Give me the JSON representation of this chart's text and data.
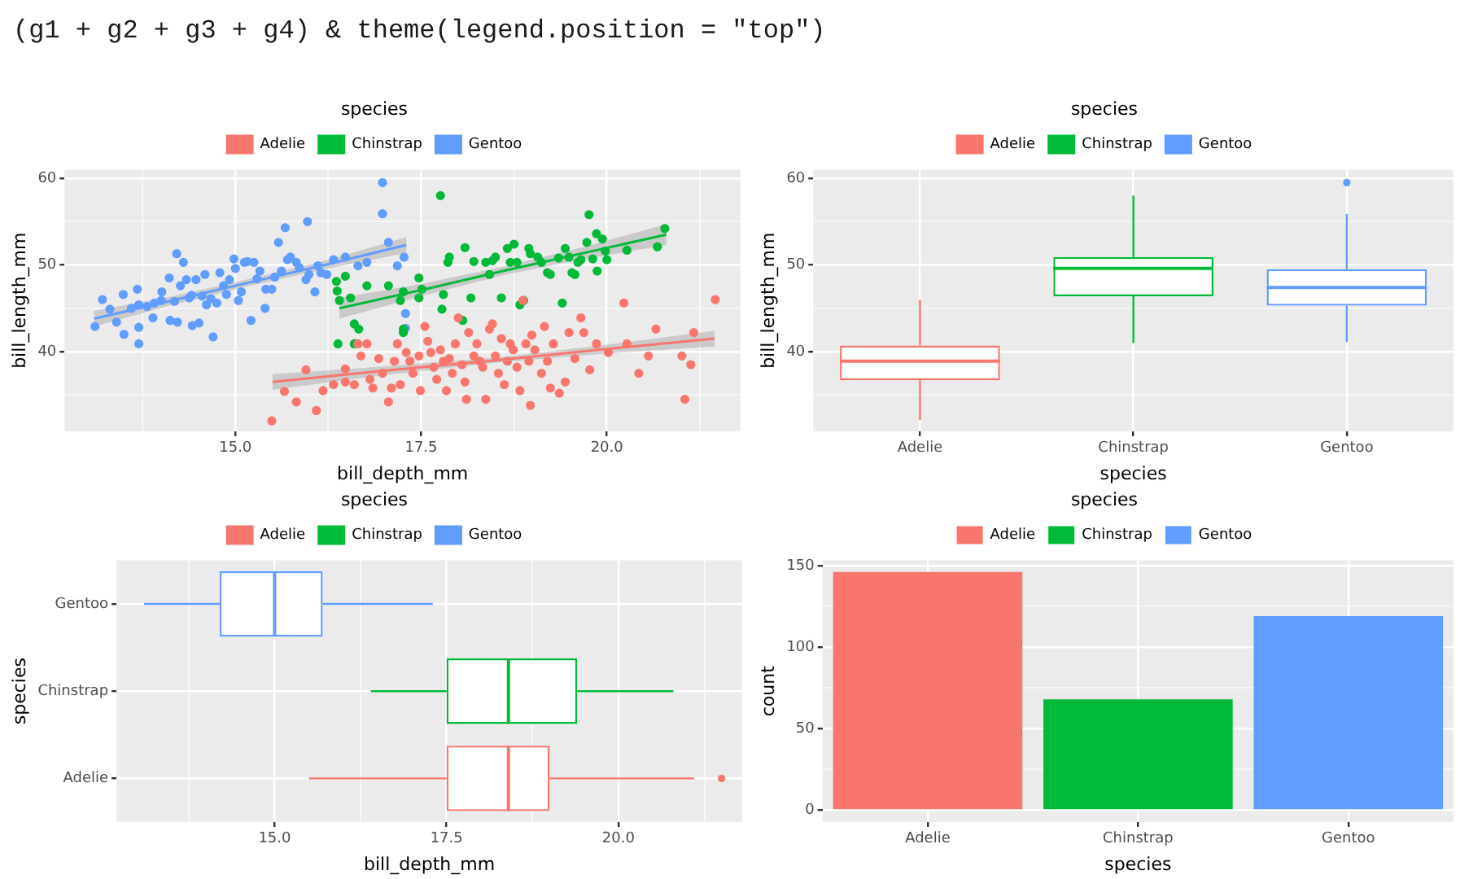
{
  "chart_data": [
    {
      "type": "scatter",
      "xlabel": "bill_depth_mm",
      "ylabel": "bill_length_mm",
      "legend_title": "species",
      "legend": "top",
      "grid": true,
      "marker": "circle",
      "annotations": [
        "(g1 + g2 + g3 + g4) & theme(legend.position = \"top\")"
      ],
      "xlim": [
        12.7,
        21.8
      ],
      "ylim": [
        30.8,
        61
      ],
      "xticks": [
        {
          "value": 13.75,
          "label": null
        },
        {
          "value": 15,
          "label": "15.0"
        },
        {
          "value": 16.25,
          "label": null
        },
        {
          "value": 17.5,
          "label": "17.5"
        },
        {
          "value": 18.75,
          "label": null
        },
        {
          "value": 20,
          "label": "20.0"
        },
        {
          "value": 21.25,
          "label": null
        }
      ],
      "yticks": [
        {
          "value": 35,
          "label": null
        },
        40,
        {
          "value": 45,
          "label": null
        },
        50,
        {
          "value": 55,
          "label": null
        },
        60
      ],
      "series": [
        {
          "name": "Adelie",
          "color": "#f8766d",
          "x": [
            15.49,
            15.66,
            15.82,
            15.95,
            16.09,
            16.18,
            16.32,
            16.48,
            16.48,
            16.6,
            16.65,
            16.69,
            16.77,
            16.81,
            16.85,
            16.93,
            16.98,
            17.06,
            17.1,
            17.14,
            17.18,
            17.22,
            17.3,
            17.35,
            17.39,
            17.47,
            17.49,
            17.55,
            17.59,
            17.63,
            17.67,
            17.71,
            17.76,
            17.8,
            17.84,
            17.88,
            17.92,
            17.96,
            18,
            18.05,
            18.09,
            18.11,
            18.14,
            18.21,
            18.25,
            18.29,
            18.33,
            18.37,
            18.42,
            18.46,
            18.5,
            18.54,
            18.58,
            18.62,
            18.66,
            18.7,
            18.74,
            18.79,
            18.83,
            18.87,
            18.91,
            18.95,
            18.97,
            18.99,
            19.03,
            19.12,
            19.16,
            19.2,
            19.24,
            19.28,
            19.36,
            19.44,
            19.49,
            19.57,
            19.65,
            19.69,
            19.77,
            19.86,
            20.02,
            20.23,
            20.27,
            20.43,
            20.56,
            20.66,
            21.01,
            21.05,
            21.13,
            21.17,
            21.46
          ],
          "values": [
            32,
            35.4,
            34.2,
            37.9,
            33.2,
            35.5,
            36.2,
            38,
            36.5,
            36.2,
            40.9,
            39.5,
            40.9,
            36.8,
            35.8,
            39.2,
            37.5,
            34.2,
            35.8,
            38.9,
            40.9,
            36.2,
            39.9,
            38.9,
            37.5,
            39.5,
            35.5,
            42.9,
            41.2,
            39.9,
            38.2,
            36.8,
            40.2,
            38.9,
            35.5,
            39.2,
            37.5,
            40.9,
            43.9,
            38.5,
            36.5,
            34.5,
            42.2,
            39.5,
            40.9,
            38.9,
            38.2,
            34.5,
            42.6,
            43.2,
            39.5,
            37.5,
            41.5,
            36.2,
            38.9,
            40.9,
            40.2,
            38.2,
            35.5,
            45.9,
            40.9,
            38.9,
            33.8,
            41.9,
            40.2,
            37.5,
            42.9,
            38.9,
            35.8,
            40.9,
            35.2,
            36.5,
            42.2,
            39.2,
            43.9,
            42.2,
            37.9,
            40.9,
            39.9,
            45.6,
            40.9,
            37.5,
            39.5,
            42.6,
            39.5,
            34.5,
            38.5,
            42.2,
            46
          ]
        },
        {
          "name": "Chinstrap",
          "color": "#00ba38",
          "x": [
            16.36,
            16.37,
            16.4,
            16.48,
            16.55,
            16.6,
            16.66,
            16.38,
            16.6,
            16.77,
            17.06,
            17.22,
            17.26,
            17.26,
            17.26,
            17.47,
            17.47,
            17.51,
            17.78,
            17.8,
            17.76,
            17.86,
            17.88,
            18.06,
            18.09,
            18.17,
            18.21,
            18.37,
            18.42,
            18.46,
            18.5,
            18.58,
            18.66,
            18.7,
            18.75,
            18.79,
            18.83,
            18.88,
            18.95,
            18.97,
            19.07,
            19.12,
            19.2,
            19.24,
            19.35,
            19.4,
            19.44,
            19.49,
            19.53,
            19.57,
            19.61,
            19.65,
            19.73,
            19.76,
            19.81,
            19.86,
            19.87,
            19.94,
            19.98,
            20,
            20.27,
            20.68,
            20.78
          ],
          "values": [
            48.1,
            47,
            45.9,
            48.7,
            46.2,
            43.2,
            42.6,
            40.9,
            40.9,
            47.6,
            47.6,
            45.9,
            46.9,
            42.6,
            42.2,
            48.5,
            46.2,
            47.2,
            44.9,
            46.6,
            58,
            50.3,
            50.9,
            43.6,
            52,
            46.2,
            50.4,
            50.3,
            48.9,
            50.5,
            50.9,
            46.2,
            51.9,
            50.3,
            52.4,
            50.3,
            45.4,
            45.9,
            51.9,
            51.3,
            50.9,
            50.3,
            49.1,
            48.9,
            50.8,
            45.6,
            51.9,
            50.9,
            49.1,
            48.9,
            50.3,
            50.6,
            52.6,
            55.8,
            50.7,
            53.6,
            49.3,
            53,
            51.6,
            50.6,
            51.7,
            52.1,
            54.2
          ]
        },
        {
          "name": "Gentoo",
          "color": "#619cff",
          "x": [
            13.11,
            13.21,
            13.31,
            13.4,
            13.49,
            13.5,
            13.6,
            13.68,
            13.7,
            13.7,
            13.7,
            13.81,
            13.89,
            13.91,
            14,
            14.01,
            14.11,
            14.12,
            14.18,
            14.21,
            14.22,
            14.26,
            14.3,
            14.34,
            14.38,
            14.41,
            14.42,
            14.47,
            14.51,
            14.55,
            14.59,
            14.61,
            14.67,
            14.7,
            14.75,
            14.79,
            14.84,
            14.88,
            14.92,
            14.98,
            15,
            15.04,
            15.08,
            15.12,
            15.16,
            15.21,
            15.25,
            15.29,
            15.33,
            15.4,
            15.41,
            15.49,
            15.53,
            15.58,
            15.62,
            15.67,
            15.7,
            15.74,
            15.82,
            15.86,
            15.95,
            15.97,
            15.99,
            16.07,
            16.11,
            16.15,
            16.23,
            16.32,
            16.48,
            16.65,
            16.77,
            16.98,
            16.98,
            17.06,
            17.18,
            17.27,
            17.29,
            17.29
          ],
          "values": [
            42.9,
            46,
            44.9,
            43.4,
            46.6,
            42,
            45,
            47.2,
            42.8,
            40.9,
            45.4,
            45.2,
            43.9,
            45.6,
            45.9,
            46.9,
            48.5,
            43.6,
            45.8,
            51.3,
            43.4,
            47.6,
            50.3,
            48.3,
            46.2,
            46.5,
            43,
            48.3,
            43.3,
            46.4,
            48.9,
            45.4,
            46.1,
            41.7,
            45.6,
            49.1,
            47.6,
            46.6,
            48.3,
            50.7,
            49.6,
            45.9,
            46.9,
            50.3,
            50.4,
            43.6,
            50.3,
            48.4,
            49.3,
            45,
            47.2,
            47.2,
            48.6,
            52.6,
            49.3,
            54.3,
            50.6,
            50.9,
            50.3,
            49.7,
            48.3,
            55,
            48.9,
            46.9,
            49.9,
            49.1,
            48.9,
            50.6,
            50.9,
            49.9,
            50.3,
            59.5,
            55.9,
            52.6,
            49.9,
            50.9,
            44.4,
            42.7
          ]
        },
        {
          "type": "line",
          "marker": "none",
          "color": "#f8766d",
          "x": [
            15.5,
            17,
            18.5,
            20,
            21.45
          ],
          "values": [
            36.5,
            37.8,
            39,
            40.3,
            41.5
          ],
          "lower": [
            35.6,
            37.3,
            38.7,
            39.8,
            40.6
          ],
          "upper": [
            37.4,
            38.3,
            39.3,
            40.8,
            42.4
          ]
        },
        {
          "type": "line",
          "marker": "none",
          "color": "#00ba38",
          "x": [
            16.4,
            17.5,
            18.6,
            19.7,
            20.8
          ],
          "values": [
            45,
            47.1,
            49.3,
            51.4,
            53.5
          ],
          "lower": [
            43.8,
            46.4,
            48.8,
            50.7,
            52.3
          ],
          "upper": [
            46.2,
            47.8,
            49.8,
            52.1,
            54.7
          ]
        },
        {
          "type": "line",
          "marker": "none",
          "color": "#619cff",
          "x": [
            13.1,
            14.15,
            15.2,
            16.25,
            17.3
          ],
          "values": [
            43.8,
            45.9,
            48,
            50.1,
            52.3
          ],
          "lower": [
            42.9,
            45.4,
            47.6,
            49.6,
            51.4
          ],
          "upper": [
            44.7,
            46.4,
            48.4,
            50.6,
            53.2
          ]
        }
      ]
    },
    {
      "type": "box",
      "categories": [
        "Adelie",
        "Chinstrap",
        "Gentoo"
      ],
      "xlabel": "species",
      "ylabel": "bill_length_mm",
      "legend_title": "species",
      "legend": "top",
      "grid": true,
      "ylim": [
        30.8,
        61
      ],
      "yticks": [
        {
          "value": 35,
          "label": null
        },
        40,
        {
          "value": 45,
          "label": null
        },
        50,
        {
          "value": 55,
          "label": null
        },
        60
      ],
      "series": [
        {
          "name": "Adelie",
          "color": "#f8766d",
          "boxes": [
            {
              "low": 32.1,
              "q1": 36.7,
              "median": 38.9,
              "q3": 40.7,
              "high": 46
            },
            null,
            null
          ]
        },
        {
          "name": "Chinstrap",
          "color": "#00ba38",
          "boxes": [
            null,
            {
              "low": 41,
              "q1": 46.4,
              "median": 49.6,
              "q3": 50.9,
              "high": 58
            },
            null
          ]
        },
        {
          "name": "Gentoo",
          "color": "#619cff",
          "boxes": [
            null,
            null,
            {
              "low": 41.1,
              "q1": 45.3,
              "median": 47.4,
              "q3": 49.5,
              "high": 55.9,
              "outliers": [
                59.5
              ]
            }
          ]
        }
      ]
    },
    {
      "type": "box",
      "orientation": "horizontal",
      "categories": [
        "Gentoo",
        "Chinstrap",
        "Adelie"
      ],
      "xlabel": "bill_depth_mm",
      "ylabel": "species",
      "legend_title": "species",
      "legend": "top",
      "grid": true,
      "xlim": [
        12.7,
        21.8
      ],
      "xticks": [
        {
          "value": 13.75,
          "label": null
        },
        {
          "value": 15,
          "label": "15.0"
        },
        {
          "value": 16.25,
          "label": null
        },
        {
          "value": 17.5,
          "label": "17.5"
        },
        {
          "value": 18.75,
          "label": null
        },
        {
          "value": 20,
          "label": "20.0"
        },
        {
          "value": 21.25,
          "label": null
        }
      ],
      "series": [
        {
          "name": "Adelie",
          "color": "#f8766d",
          "boxes": [
            null,
            null,
            {
              "low": 15.5,
              "q1": 17.5,
              "median": 18.4,
              "q3": 19,
              "high": 21.1,
              "outliers": [
                21.5
              ]
            }
          ]
        },
        {
          "name": "Chinstrap",
          "color": "#00ba38",
          "boxes": [
            null,
            {
              "low": 16.4,
              "q1": 17.5,
              "median": 18.4,
              "q3": 19.4,
              "high": 20.8
            },
            null
          ]
        },
        {
          "name": "Gentoo",
          "color": "#619cff",
          "boxes": [
            {
              "low": 13.1,
              "q1": 14.2,
              "median": 15,
              "q3": 15.7,
              "high": 17.3
            },
            null,
            null
          ]
        }
      ]
    },
    {
      "type": "bar",
      "categories": [
        "Adelie",
        "Chinstrap",
        "Gentoo"
      ],
      "xlabel": "species",
      "series": [
        {
          "name": "Adelie",
          "color": "#f8766d",
          "values": [
            146,
            null,
            null
          ]
        },
        {
          "name": "Chinstrap",
          "color": "#00ba38",
          "values": [
            null,
            68,
            null
          ]
        },
        {
          "name": "Gentoo",
          "color": "#619cff",
          "values": [
            null,
            null,
            119
          ]
        }
      ],
      "ylabel": "count",
      "legend_title": "species",
      "legend": "top",
      "grid": true,
      "ylim": [
        -7.2,
        153.2
      ],
      "yticks": [
        0,
        {
          "value": 25,
          "label": null
        },
        50,
        {
          "value": 75,
          "label": null
        },
        100,
        {
          "value": 125,
          "label": null
        },
        150
      ]
    }
  ]
}
